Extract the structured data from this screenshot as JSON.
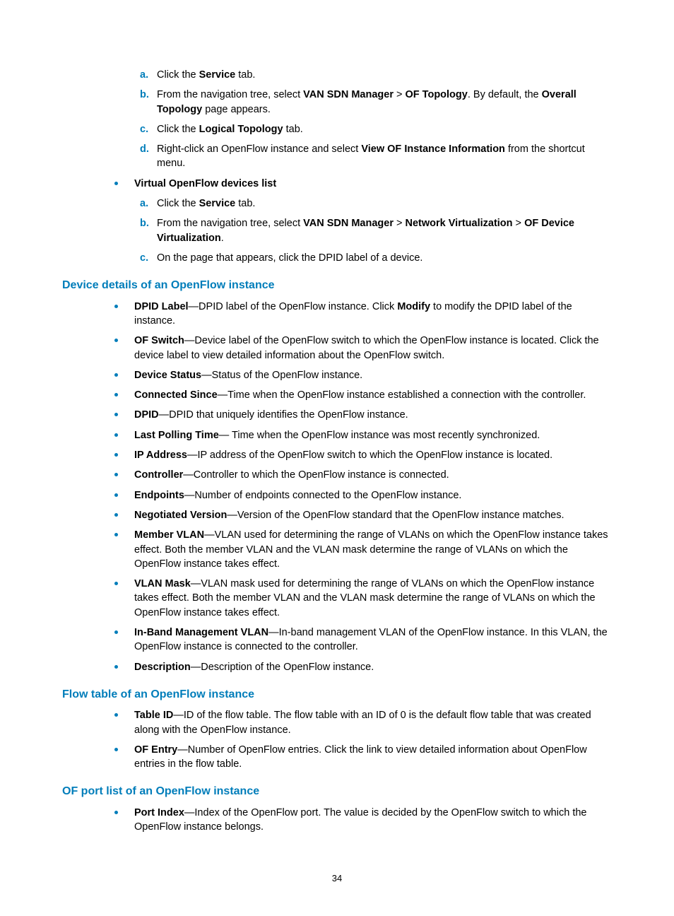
{
  "page_number": "34",
  "colors": {
    "accent": "#007dba",
    "text": "#000000",
    "bg": "#ffffff"
  },
  "top_steps": [
    {
      "pre": "Click the ",
      "bold1": "Service",
      "post": " tab."
    },
    {
      "pre": "From the navigation tree, select ",
      "bold1": "VAN SDN Manager",
      "sep1": " > ",
      "bold2": "OF Topology",
      "post2": ". By default, the ",
      "bold3": "Overall Topology",
      "post3": " page appears."
    },
    {
      "pre": "Click the ",
      "bold1": "Logical Topology",
      "post": " tab."
    },
    {
      "pre": "Right-click an OpenFlow instance and select ",
      "bold1": "View OF Instance Information",
      "post": " from the shortcut menu."
    }
  ],
  "virtual_heading": "Virtual OpenFlow devices list",
  "virtual_steps": [
    {
      "pre": "Click the ",
      "bold1": "Service",
      "post": " tab."
    },
    {
      "pre": "From the navigation tree, select ",
      "bold1": "VAN SDN Manager",
      "sep1": " > ",
      "bold2": "Network Virtualization",
      "sep2": " > ",
      "bold3": "OF Device Virtualization",
      "post3": "."
    },
    {
      "pre": "On the page that appears, click the DPID label of a device."
    }
  ],
  "sections": {
    "device_details": {
      "title": "Device details of an OpenFlow instance",
      "items": [
        {
          "term": "DPID Label",
          "text1": "—DPID label of the OpenFlow instance. Click ",
          "bold2": "Modify",
          "text2": " to modify the DPID label of the instance."
        },
        {
          "term": "OF Switch",
          "text1": "—Device label of the OpenFlow switch to which the OpenFlow instance is located. Click the device label to view detailed information about the OpenFlow switch."
        },
        {
          "term": "Device Status",
          "text1": "—Status of the OpenFlow instance."
        },
        {
          "term": "Connected Since",
          "text1": "—Time when the OpenFlow instance established a connection with the controller."
        },
        {
          "term": "DPID",
          "text1": "—DPID that uniquely identifies the OpenFlow instance."
        },
        {
          "term": "Last Polling Time",
          "text1": "— Time when the OpenFlow instance was most recently synchronized."
        },
        {
          "term": "IP Address",
          "text1": "—IP address of the OpenFlow switch to which the OpenFlow instance is located."
        },
        {
          "term": "Controller",
          "text1": "—Controller to which the OpenFlow instance is connected."
        },
        {
          "term": "Endpoints",
          "text1": "—Number of endpoints connected to the OpenFlow instance."
        },
        {
          "term": "Negotiated Version",
          "text1": "—Version of the OpenFlow standard that the OpenFlow instance matches."
        },
        {
          "term": "Member VLAN",
          "text1": "—VLAN used for determining the range of VLANs on which the OpenFlow instance takes effect. Both the member VLAN and the VLAN mask determine the range of VLANs on which the OpenFlow instance takes effect."
        },
        {
          "term": "VLAN Mask",
          "text1": "—VLAN mask used for determining the range of VLANs on which the OpenFlow instance takes effect. Both the member VLAN and the VLAN mask determine the range of VLANs on which the OpenFlow instance takes effect."
        },
        {
          "term": "In-Band Management VLAN",
          "text1": "—In-band management VLAN of the OpenFlow instance. In this VLAN, the OpenFlow instance is connected to the controller."
        },
        {
          "term": "Description",
          "text1": "—Description of the OpenFlow instance."
        }
      ]
    },
    "flow_table": {
      "title": "Flow table of an OpenFlow instance",
      "items": [
        {
          "term": "Table ID",
          "text1": "—ID of the flow table. The flow table with an ID of 0 is the default flow table that was created along with the OpenFlow instance."
        },
        {
          "term": "OF Entry",
          "text1": "—Number of OpenFlow entries. Click the link to view detailed information about OpenFlow entries in the flow table."
        }
      ]
    },
    "of_port": {
      "title": "OF port list of an OpenFlow instance",
      "items": [
        {
          "term": "Port Index",
          "text1": "—Index of the OpenFlow port. The value is decided by the OpenFlow switch to which the OpenFlow instance belongs."
        }
      ]
    }
  }
}
